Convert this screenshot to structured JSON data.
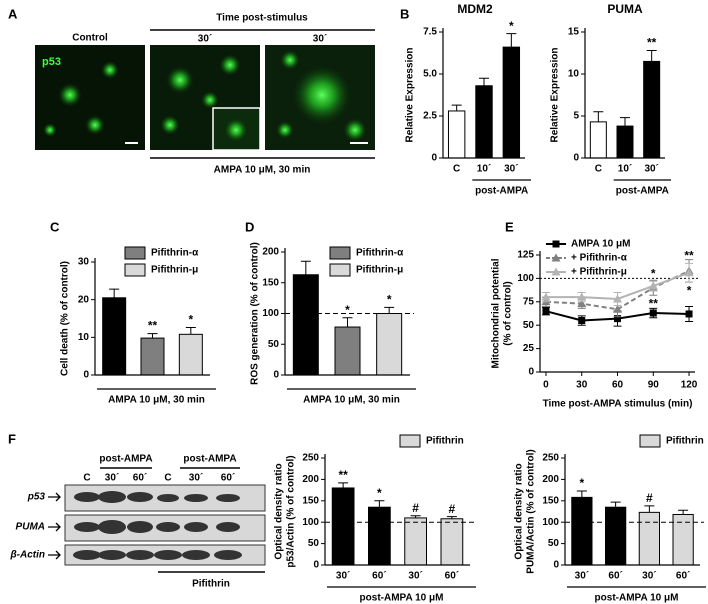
{
  "panel_labels": [
    "A",
    "B",
    "C",
    "D",
    "E",
    "F"
  ],
  "panel_a": {
    "stain": "p53",
    "control": "Control",
    "time_header": "Time post-stimulus",
    "time_1": "30´",
    "time_2": "30´",
    "treatment": "AMPA 10 μM, 30 min"
  },
  "blot": {
    "lane_labels": [
      "C",
      "30´",
      "60´",
      "C",
      "30´",
      "60´"
    ],
    "group_labels": [
      "post-AMPA",
      "post-AMPA"
    ],
    "rows": [
      "p53",
      "PUMA",
      "β-Actin"
    ],
    "treatment": "Pifithrin"
  },
  "chart_data": [
    {
      "type": "bar",
      "title": "MDM2",
      "ylabel": "Relative Expression",
      "categories": [
        "C",
        "10´",
        "30´"
      ],
      "series": [
        {
          "color": "#ffffff",
          "values": [
            2.8,
            null,
            null
          ],
          "errors": [
            0.35,
            null,
            null
          ],
          "annotations": [
            null,
            null,
            null
          ]
        },
        {
          "color": "#000000",
          "values": [
            null,
            4.3,
            6.6
          ],
          "errors": [
            null,
            0.45,
            0.8
          ],
          "annotations": [
            null,
            null,
            "*"
          ]
        }
      ],
      "ylim": [
        0,
        7.5
      ],
      "yticks": [
        0,
        2.5,
        {
          "value": 5,
          "label": "5.0"
        },
        7.5
      ],
      "xlabel": "post-AMPA"
    },
    {
      "type": "bar",
      "title": "PUMA",
      "ylabel": "Relative Expression",
      "categories": [
        "C",
        "10´",
        "30´"
      ],
      "series": [
        {
          "color": "#ffffff",
          "values": [
            4.3,
            null,
            null
          ],
          "errors": [
            1.2,
            null,
            null
          ],
          "annotations": [
            null,
            null,
            null
          ]
        },
        {
          "color": "#000000",
          "values": [
            null,
            3.8,
            11.5
          ],
          "errors": [
            null,
            1.0,
            1.3
          ],
          "annotations": [
            null,
            null,
            "**"
          ]
        }
      ],
      "ylim": [
        0,
        15
      ],
      "yticks": [
        0,
        5,
        10,
        15
      ],
      "xlabel": "post-AMPA"
    },
    {
      "type": "bar",
      "ylabel": "Cell death (% of control)",
      "series": [
        {
          "color": "#000000",
          "values": [
            20.5
          ],
          "errors": [
            2.3
          ],
          "annotations": [
            null
          ]
        },
        {
          "name": "Pifithrin-α",
          "color": "#7f7f7f",
          "values": [
            9.8
          ],
          "errors": [
            1.2
          ],
          "annotations": [
            "**"
          ]
        },
        {
          "name": "Pifithrin-μ",
          "color": "#d9d9d9",
          "values": [
            10.8
          ],
          "errors": [
            1.8
          ],
          "annotations": [
            "*"
          ]
        }
      ],
      "ylim": [
        0,
        30
      ],
      "yticks": [
        0,
        10,
        20,
        30
      ],
      "xlabel": "AMPA 10 μM, 30 min"
    },
    {
      "type": "bar",
      "ylabel": "ROS generation (% of control)",
      "series": [
        {
          "color": "#000000",
          "values": [
            163
          ],
          "errors": [
            22
          ],
          "annotations": [
            null
          ]
        },
        {
          "name": "Pifithrin-α",
          "color": "#7f7f7f",
          "values": [
            78
          ],
          "errors": [
            15
          ],
          "annotations": [
            "*"
          ]
        },
        {
          "name": "Pifithrin-μ",
          "color": "#d9d9d9",
          "values": [
            100
          ],
          "errors": [
            10
          ],
          "annotations": [
            "*"
          ]
        }
      ],
      "ylim": [
        0,
        200
      ],
      "yticks": [
        0,
        50,
        100,
        150,
        200
      ],
      "reference_line": 100,
      "xlabel": "AMPA 10 μM, 30 min"
    },
    {
      "type": "line",
      "ylabel": [
        "Mitochondrial potential",
        "(% of control)"
      ],
      "xlabel": "Time post-AMPA stimulus (min)",
      "x": [
        0,
        30,
        60,
        90,
        120
      ],
      "series": [
        {
          "name": "AMPA 10 μM",
          "color": "#000000",
          "marker": "square",
          "dash": false,
          "values": [
            65,
            55,
            57,
            63,
            62
          ],
          "errors": [
            4,
            5,
            8,
            5,
            8
          ],
          "annotations": [
            null,
            null,
            null,
            null,
            null
          ]
        },
        {
          "name": "+ Pifithrin-α",
          "color": "#808080",
          "marker": "triangle",
          "dash": true,
          "values": [
            75,
            73,
            67,
            90,
            108
          ],
          "errors": [
            5,
            5,
            8,
            8,
            12
          ],
          "annotations": [
            null,
            null,
            null,
            "**",
            "*"
          ]
        },
        {
          "name": "+ Pifithrin-μ",
          "color": "#b3b3b3",
          "marker": "triangle",
          "dash": false,
          "values": [
            80,
            80,
            78,
            92,
            106
          ],
          "errors": [
            5,
            5,
            7,
            5,
            10
          ],
          "annotations": [
            null,
            null,
            null,
            "*",
            "**"
          ]
        }
      ],
      "xlim": [
        -5,
        125
      ],
      "xticks": [
        0,
        30,
        60,
        90,
        120
      ],
      "ylim": [
        0,
        125
      ],
      "yticks": [
        0,
        25,
        50,
        75,
        100,
        125
      ],
      "reference_line": 100
    },
    {
      "type": "bar",
      "ylabel": [
        "Optical density ratio",
        "p53/Actin (% of control)"
      ],
      "categories": [
        "30´",
        "60´",
        "30´",
        "60´"
      ],
      "series": [
        {
          "color": "#000000",
          "values": [
            180,
            135,
            null,
            null
          ],
          "errors": [
            12,
            15,
            null,
            null
          ],
          "annotations": [
            "**",
            "*",
            null,
            null
          ]
        },
        {
          "name": "Pifithrin",
          "color": "#d9d9d9",
          "values": [
            null,
            null,
            110,
            108
          ],
          "errors": [
            null,
            null,
            5,
            5
          ],
          "annotations": [
            null,
            null,
            "#",
            "#"
          ]
        }
      ],
      "ylim": [
        0,
        250
      ],
      "yticks": [
        0,
        50,
        100,
        150,
        200,
        250
      ],
      "reference_line": 100,
      "xlabel": "post-AMPA 10 μM"
    },
    {
      "type": "bar",
      "ylabel": [
        "Optical density ratio",
        "PUMA/Actin (% of control)"
      ],
      "categories": [
        "30´",
        "60´",
        "30´",
        "60´"
      ],
      "series": [
        {
          "color": "#000000",
          "values": [
            158,
            135,
            null,
            null
          ],
          "errors": [
            15,
            12,
            null,
            null
          ],
          "annotations": [
            "*",
            null,
            null,
            null
          ]
        },
        {
          "name": "Pifithrin",
          "color": "#d9d9d9",
          "values": [
            null,
            null,
            123,
            118
          ],
          "errors": [
            null,
            null,
            15,
            10
          ],
          "annotations": [
            null,
            null,
            "#",
            null
          ]
        }
      ],
      "ylim": [
        0,
        250
      ],
      "yticks": [
        0,
        50,
        100,
        150,
        200,
        250
      ],
      "reference_line": 100,
      "xlabel": "post-AMPA 10 μM"
    }
  ]
}
